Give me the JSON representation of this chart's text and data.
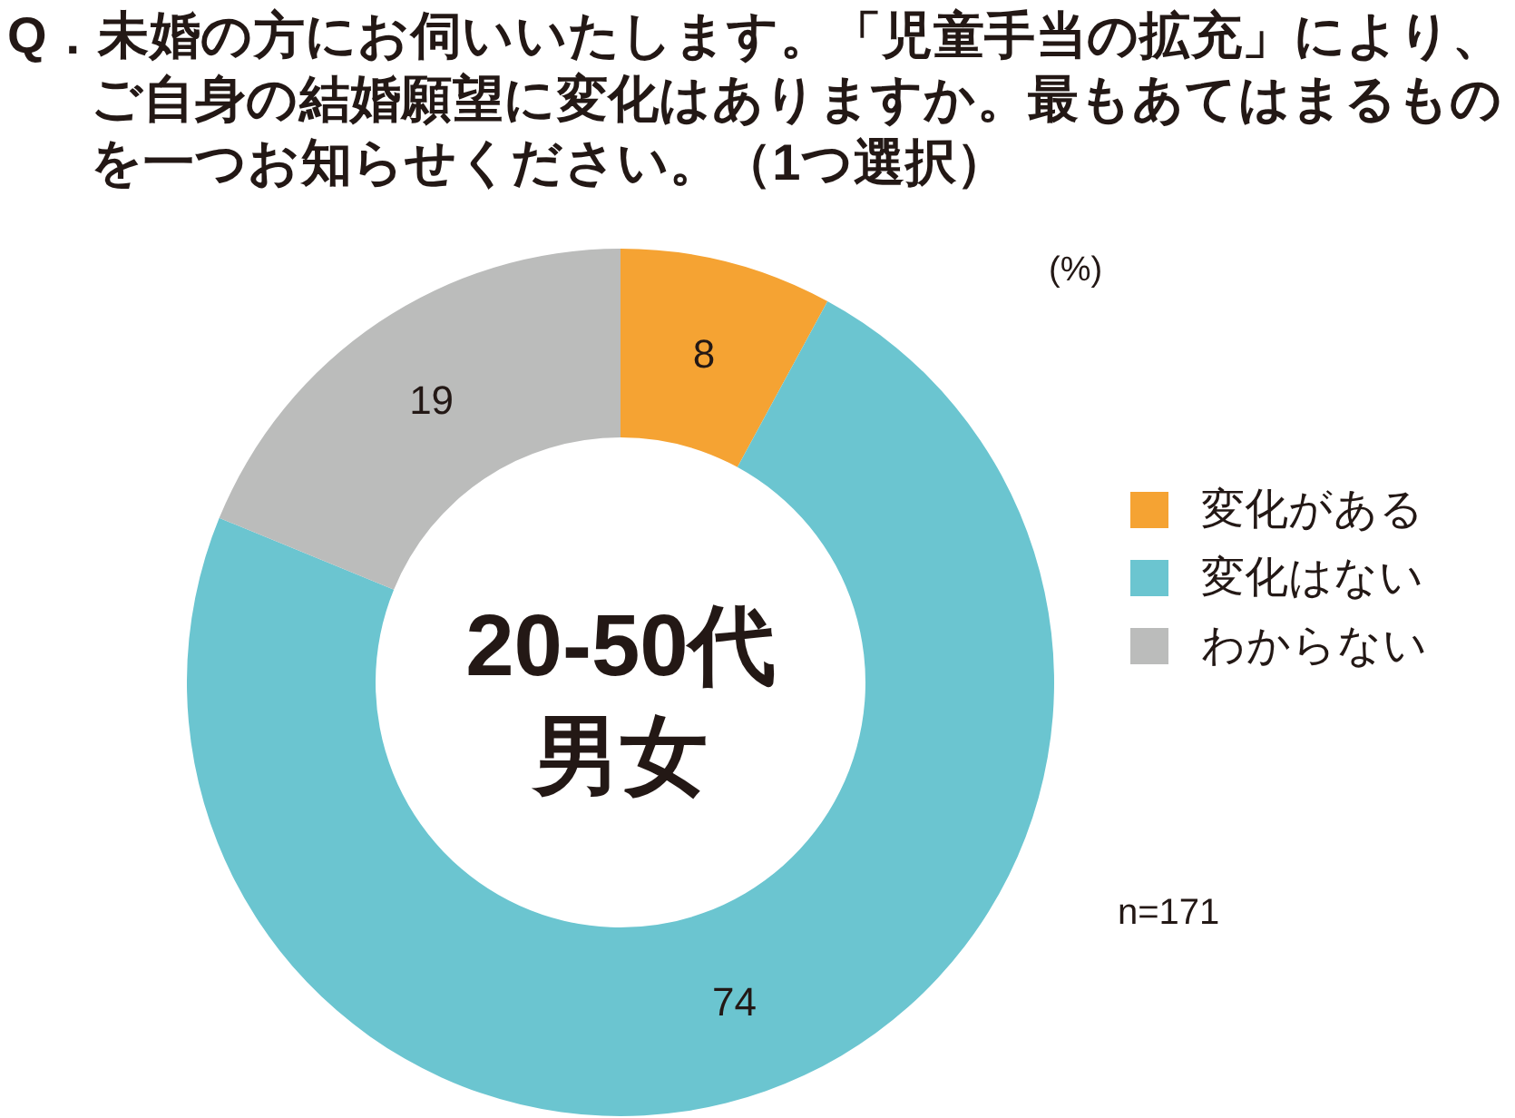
{
  "chart_data": {
    "type": "donut",
    "title": "Q．未婚の方にお伺いいたします。「児童手当の拡充」により、ご自身の結婚願望に変化はありますか。最もあてはまるものを一つお知らせください。（1つ選択）",
    "subtitle": "20-50代男女",
    "categories": [
      "変化がある",
      "変化はない",
      "わからない"
    ],
    "values": [
      8,
      74,
      19
    ],
    "colors": [
      "#f5a333",
      "#6bc5d0",
      "#bbbcbb"
    ],
    "data_labels": true,
    "legend": "right",
    "annotations": [
      "(%)",
      "n=171"
    ]
  }
}
